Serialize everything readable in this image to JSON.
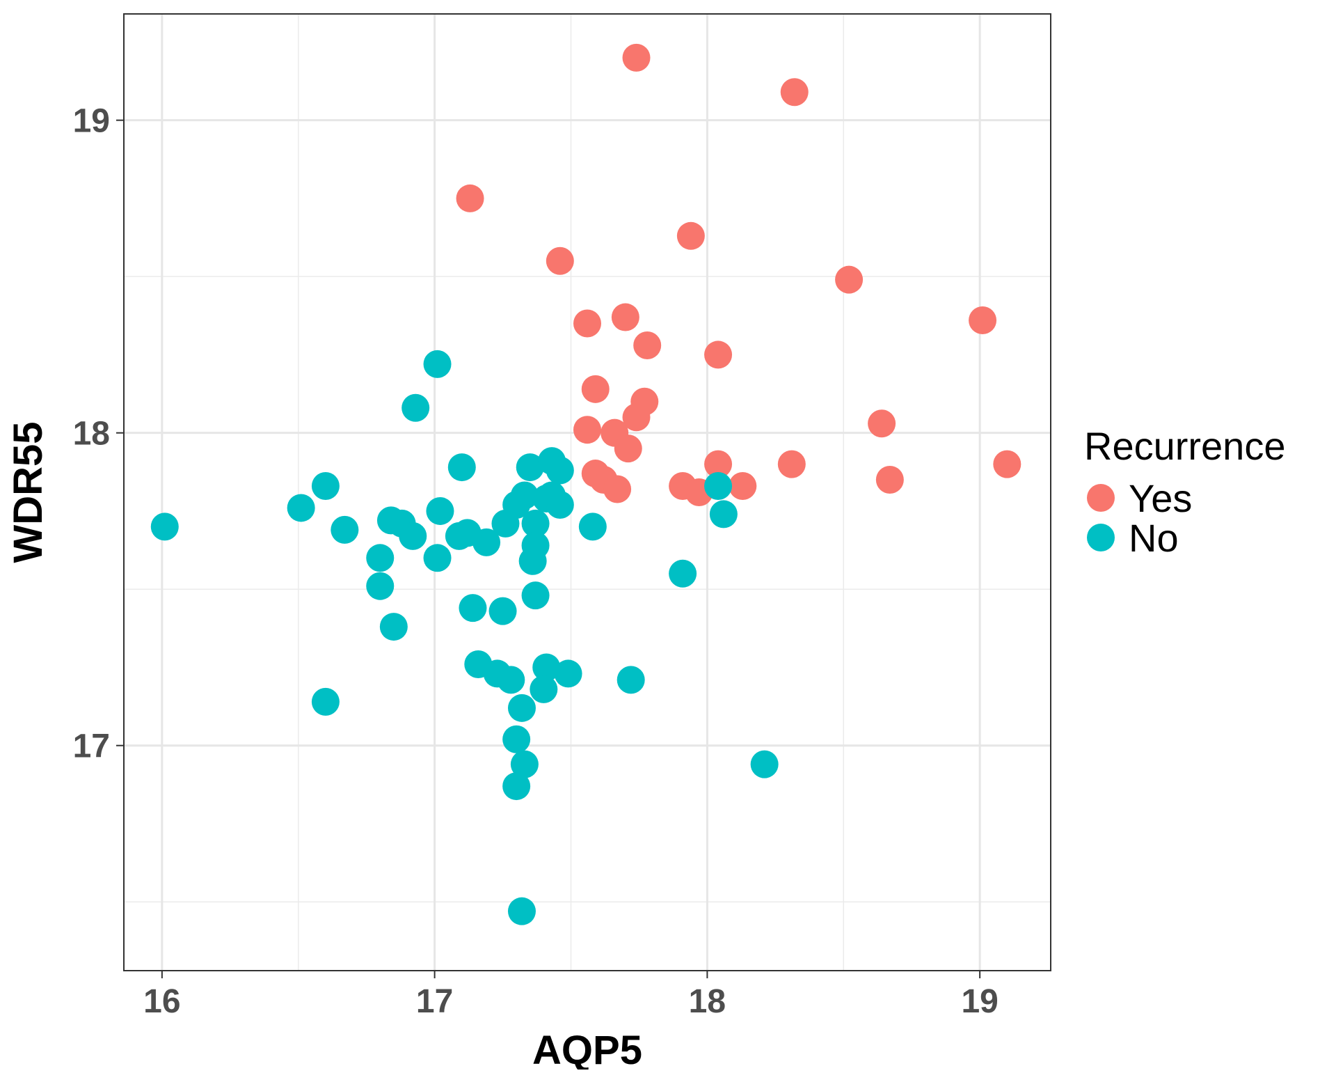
{
  "chart_data": {
    "type": "scatter",
    "xlabel": "AQP5",
    "ylabel": "WDR55",
    "xlim": [
      15.86,
      19.26
    ],
    "ylim": [
      16.28,
      19.34
    ],
    "x_ticks": [
      16,
      17,
      18,
      19
    ],
    "y_ticks": [
      17,
      18,
      19
    ],
    "grid": true,
    "legend": {
      "title": "Recurrence",
      "position": "right",
      "entries": [
        "Yes",
        "No"
      ]
    },
    "series": [
      {
        "name": "Yes",
        "color": "#F8766D",
        "points": [
          [
            17.74,
            19.2
          ],
          [
            18.32,
            19.09
          ],
          [
            17.13,
            18.75
          ],
          [
            17.94,
            18.63
          ],
          [
            17.46,
            18.55
          ],
          [
            18.52,
            18.49
          ],
          [
            17.56,
            18.35
          ],
          [
            17.7,
            18.37
          ],
          [
            19.01,
            18.36
          ],
          [
            17.78,
            18.28
          ],
          [
            18.04,
            18.25
          ],
          [
            17.59,
            18.14
          ],
          [
            17.77,
            18.1
          ],
          [
            17.74,
            18.05
          ],
          [
            17.56,
            18.01
          ],
          [
            17.66,
            18.0
          ],
          [
            18.64,
            18.03
          ],
          [
            17.71,
            17.95
          ],
          [
            18.04,
            17.9
          ],
          [
            18.31,
            17.9
          ],
          [
            19.1,
            17.9
          ],
          [
            17.59,
            17.87
          ],
          [
            17.62,
            17.85
          ],
          [
            17.67,
            17.82
          ],
          [
            17.91,
            17.83
          ],
          [
            17.97,
            17.81
          ],
          [
            18.13,
            17.83
          ],
          [
            18.67,
            17.85
          ]
        ]
      },
      {
        "name": "No",
        "color": "#00BFC4",
        "points": [
          [
            16.01,
            17.7
          ],
          [
            16.51,
            17.76
          ],
          [
            16.6,
            17.83
          ],
          [
            16.67,
            17.69
          ],
          [
            16.8,
            17.6
          ],
          [
            16.8,
            17.51
          ],
          [
            16.84,
            17.72
          ],
          [
            16.88,
            17.71
          ],
          [
            16.92,
            17.67
          ],
          [
            16.85,
            17.38
          ],
          [
            16.6,
            17.14
          ],
          [
            16.93,
            18.08
          ],
          [
            17.01,
            18.22
          ],
          [
            17.01,
            17.6
          ],
          [
            17.02,
            17.75
          ],
          [
            17.1,
            17.89
          ],
          [
            17.09,
            17.67
          ],
          [
            17.12,
            17.68
          ],
          [
            17.19,
            17.65
          ],
          [
            17.14,
            17.44
          ],
          [
            17.25,
            17.43
          ],
          [
            17.26,
            17.71
          ],
          [
            17.3,
            17.77
          ],
          [
            17.33,
            17.8
          ],
          [
            17.35,
            17.89
          ],
          [
            17.43,
            17.91
          ],
          [
            17.46,
            17.88
          ],
          [
            17.43,
            17.8
          ],
          [
            17.41,
            17.79
          ],
          [
            17.46,
            17.77
          ],
          [
            17.37,
            17.71
          ],
          [
            17.37,
            17.64
          ],
          [
            17.36,
            17.59
          ],
          [
            17.37,
            17.48
          ],
          [
            17.58,
            17.7
          ],
          [
            17.16,
            17.26
          ],
          [
            17.23,
            17.23
          ],
          [
            17.28,
            17.21
          ],
          [
            17.41,
            17.25
          ],
          [
            17.4,
            17.18
          ],
          [
            17.49,
            17.23
          ],
          [
            17.32,
            17.12
          ],
          [
            17.3,
            17.02
          ],
          [
            17.33,
            16.94
          ],
          [
            17.3,
            16.87
          ],
          [
            17.32,
            16.47
          ],
          [
            17.72,
            17.21
          ],
          [
            17.91,
            17.55
          ],
          [
            18.04,
            17.83
          ],
          [
            18.06,
            17.74
          ],
          [
            18.21,
            16.94
          ]
        ]
      }
    ]
  }
}
